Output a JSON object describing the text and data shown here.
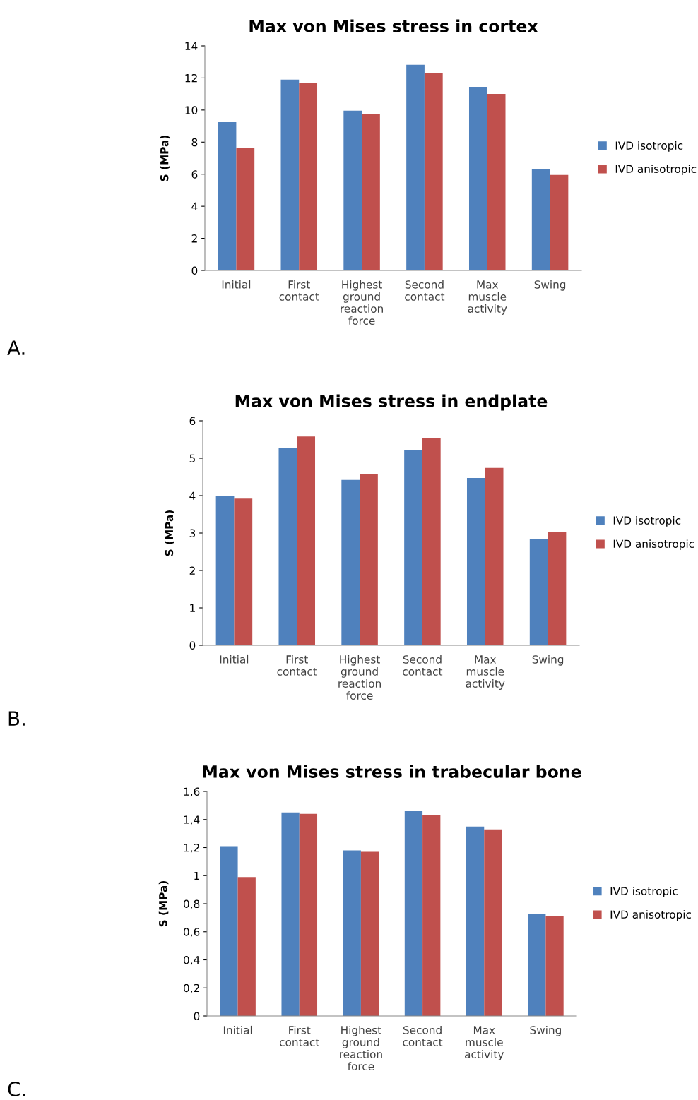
{
  "chart_data": [
    {
      "type": "bar",
      "title": "Max von Mises stress in cortex",
      "ylabel": "S (MPa)",
      "annotations": [
        "A."
      ],
      "categories": [
        "Initial",
        "First contact",
        "Highest ground reaction force",
        "Second contact",
        "Max muscle activity",
        "Swing"
      ],
      "series": [
        {
          "name": "IVD isotropic",
          "color": "#4f81bd",
          "values": [
            9.25,
            11.9,
            9.96,
            12.82,
            11.45,
            6.3
          ]
        },
        {
          "name": "IVD anisotropic",
          "color": "#c0504d",
          "values": [
            7.66,
            11.67,
            9.74,
            12.29,
            11.01,
            5.95
          ]
        }
      ],
      "ylim": [
        0,
        14
      ],
      "yticks": [
        0,
        2,
        4,
        6,
        8,
        10,
        12,
        14
      ],
      "grid": false,
      "legend": "right"
    },
    {
      "type": "bar",
      "title": "Max von Mises stress in endplate",
      "ylabel": "S (MPa)",
      "annotations": [
        "B."
      ],
      "categories": [
        "Initial",
        "First contact",
        "Highest ground reaction force",
        "Second contact",
        "Max muscle activity",
        "Swing"
      ],
      "series": [
        {
          "name": "IVD isotropic",
          "color": "#4f81bd",
          "values": [
            3.98,
            5.28,
            4.42,
            5.21,
            4.47,
            2.83
          ]
        },
        {
          "name": "IVD anisotropic",
          "color": "#c0504d",
          "values": [
            3.92,
            5.58,
            4.57,
            5.53,
            4.74,
            3.02
          ]
        }
      ],
      "ylim": [
        0,
        6
      ],
      "yticks": [
        0,
        1,
        2,
        3,
        4,
        5,
        6
      ],
      "grid": false,
      "legend": "right"
    },
    {
      "type": "bar",
      "title": "Max von Mises stress in trabecular bone",
      "ylabel": "S (MPa)",
      "annotations": [
        "C."
      ],
      "categories": [
        "Initial",
        "First contact",
        "Highest ground reaction force",
        "Second contact",
        "Max muscle activity",
        "Swing"
      ],
      "series": [
        {
          "name": "IVD isotropic",
          "color": "#4f81bd",
          "values": [
            1.21,
            1.45,
            1.18,
            1.46,
            1.35,
            0.73
          ]
        },
        {
          "name": "IVD anisotropic",
          "color": "#c0504d",
          "values": [
            0.99,
            1.44,
            1.17,
            1.43,
            1.33,
            0.71
          ]
        }
      ],
      "ylim": [
        0,
        1.6
      ],
      "yticks": [
        0,
        {
          "value": 0.2,
          "label": "0,2"
        },
        {
          "value": 0.4,
          "label": "0,4"
        },
        {
          "value": 0.6,
          "label": "0,6"
        },
        {
          "value": 0.8,
          "label": "0,8"
        },
        1,
        {
          "value": 1.2,
          "label": "1,2"
        },
        {
          "value": 1.4,
          "label": "1,4"
        },
        {
          "value": 1.6,
          "label": "1,6"
        }
      ],
      "grid": false,
      "legend": "right"
    }
  ]
}
